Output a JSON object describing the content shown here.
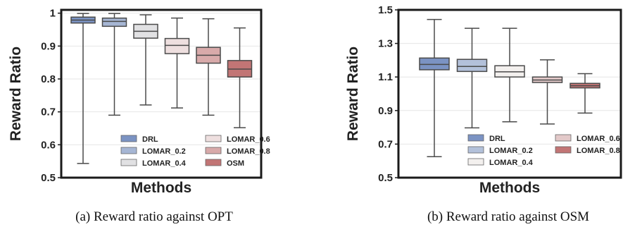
{
  "chart_data": [
    {
      "type": "box",
      "xlabel": "Methods",
      "ylabel": "Reward Ratio",
      "caption": "(a) Reward ratio against OPT",
      "ylim": [
        0.5,
        1.01
      ],
      "yticks": [
        "0.5",
        "0.6",
        "0.7",
        "0.8",
        "0.9",
        "1"
      ],
      "ytick_values": [
        0.5,
        0.6,
        0.7,
        0.8,
        0.9,
        1.0
      ],
      "legend_position": "lower-right",
      "series": [
        {
          "name": "DRL",
          "color": "#7b93c3",
          "whisker_low": 0.543,
          "q1": 0.97,
          "median": 0.979,
          "q3": 0.988,
          "whisker_high": 0.999
        },
        {
          "name": "LOMAR_0.2",
          "color": "#a6b6d4",
          "whisker_low": 0.69,
          "q1": 0.96,
          "median": 0.975,
          "q3": 0.985,
          "whisker_high": 0.999
        },
        {
          "name": "LOMAR_0.4",
          "color": "#e1e1e3",
          "whisker_low": 0.721,
          "q1": 0.924,
          "median": 0.945,
          "q3": 0.966,
          "whisker_high": 0.995
        },
        {
          "name": "LOMAR_0.6",
          "color": "#eedfdf",
          "whisker_low": 0.712,
          "q1": 0.877,
          "median": 0.902,
          "q3": 0.923,
          "whisker_high": 0.985
        },
        {
          "name": "LOMAR_0.8",
          "color": "#d8aaaa",
          "whisker_low": 0.69,
          "q1": 0.848,
          "median": 0.872,
          "q3": 0.896,
          "whisker_high": 0.983
        },
        {
          "name": "OSM",
          "color": "#c27575",
          "whisker_low": 0.652,
          "q1": 0.806,
          "median": 0.83,
          "q3": 0.856,
          "whisker_high": 0.955
        }
      ]
    },
    {
      "type": "box",
      "xlabel": "Methods",
      "ylabel": "Reward Ratio",
      "caption": "(b) Reward ratio against OSM",
      "ylim": [
        0.5,
        1.5
      ],
      "yticks": [
        "0.5",
        "0.7",
        "0.9",
        "1.1",
        "1.3",
        "1.5"
      ],
      "ytick_values": [
        0.5,
        0.7,
        0.9,
        1.1,
        1.3,
        1.5
      ],
      "legend_position": "lower-right",
      "series": [
        {
          "name": "DRL",
          "color": "#7b93c3",
          "whisker_low": 0.625,
          "q1": 1.143,
          "median": 1.175,
          "q3": 1.213,
          "whisker_high": 1.443
        },
        {
          "name": "LOMAR_0.2",
          "color": "#b3c1da",
          "whisker_low": 0.797,
          "q1": 1.133,
          "median": 1.163,
          "q3": 1.205,
          "whisker_high": 1.39
        },
        {
          "name": "LOMAR_0.4",
          "color": "#f3f0ee",
          "whisker_low": 0.833,
          "q1": 1.1,
          "median": 1.131,
          "q3": 1.167,
          "whisker_high": 1.39
        },
        {
          "name": "LOMAR_0.6",
          "color": "#e3c9c9",
          "whisker_low": 0.82,
          "q1": 1.067,
          "median": 1.082,
          "q3": 1.1,
          "whisker_high": 1.202
        },
        {
          "name": "LOMAR_0.8",
          "color": "#c27575",
          "whisker_low": 0.885,
          "q1": 1.035,
          "median": 1.048,
          "q3": 1.062,
          "whisker_high": 1.12
        }
      ]
    }
  ]
}
